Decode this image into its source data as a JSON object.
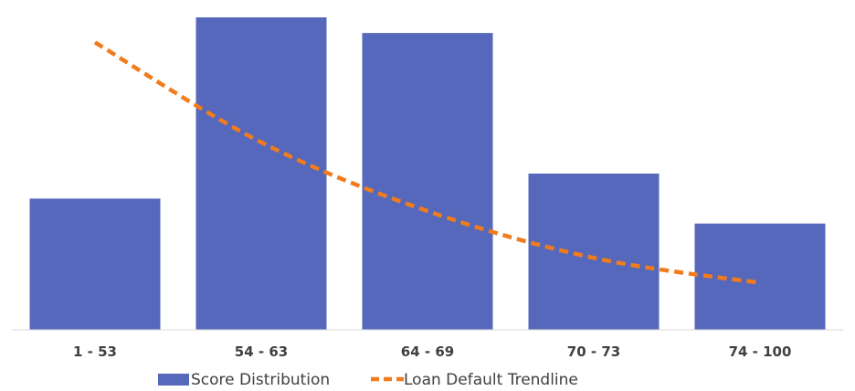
{
  "chart_data": {
    "type": "bar",
    "categories": [
      "1 - 53",
      "54 - 63",
      "64 - 69",
      "70 - 73",
      "74 - 100"
    ],
    "series": [
      {
        "name": "Score Distribution",
        "kind": "bar",
        "color": "#5568BB",
        "values": [
          42,
          100,
          95,
          50,
          34
        ]
      },
      {
        "name": "Loan Default Trendline",
        "kind": "line",
        "style": "dashed",
        "color": "#F07C1E",
        "values": [
          92,
          60,
          38,
          23,
          15
        ]
      }
    ],
    "title": "",
    "xlabel": "",
    "ylabel": "",
    "ylim": [
      0,
      100
    ],
    "grid": false,
    "legend": "bottom"
  }
}
